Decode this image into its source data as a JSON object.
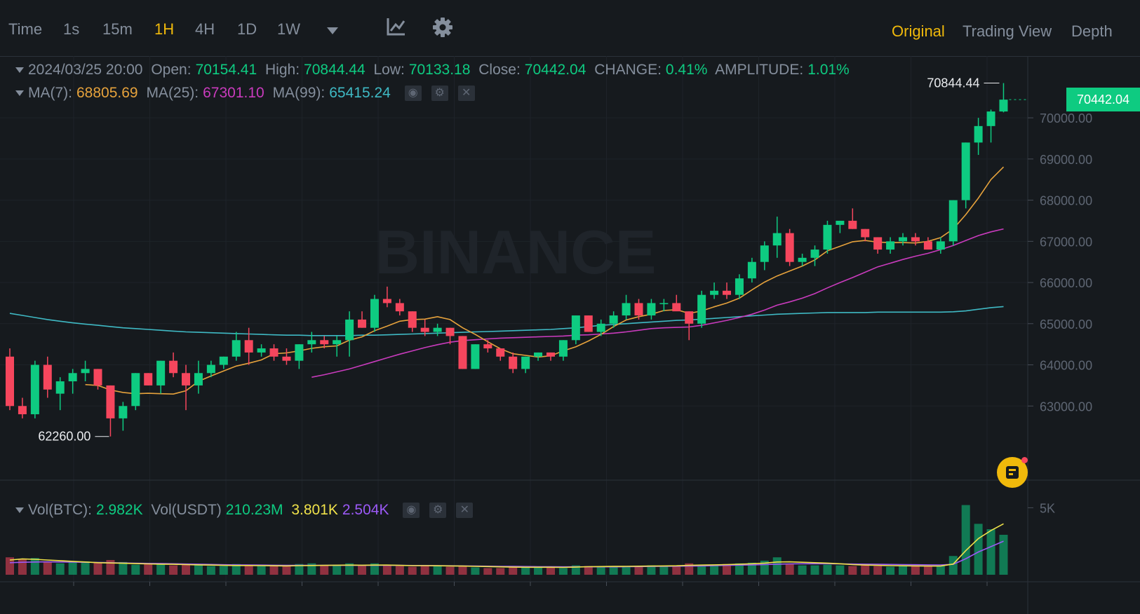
{
  "toolbar": {
    "timeframes": [
      "Time",
      "1s",
      "15m",
      "1H",
      "4H",
      "1D",
      "1W"
    ],
    "active_timeframe": "1H",
    "views": [
      "Original",
      "Trading View",
      "Depth"
    ],
    "active_view": "Original"
  },
  "legend": {
    "date": "2024/03/25 20:00",
    "open_label": "Open:",
    "open": "70154.41",
    "high_label": "High:",
    "high": "70844.44",
    "low_label": "Low:",
    "low": "70133.18",
    "close_label": "Close:",
    "close": "70442.04",
    "change_label": "CHANGE:",
    "change": "0.41%",
    "amplitude_label": "AMPLITUDE:",
    "amplitude": "1.01%",
    "ma7_label": "MA(7):",
    "ma7": "68805.69",
    "ma25_label": "MA(25):",
    "ma25": "67301.10",
    "ma99_label": "MA(99):",
    "ma99": "65415.24"
  },
  "vol_legend": {
    "btc_label": "Vol(BTC):",
    "btc": "2.982K",
    "usdt_label": "Vol(USDT)",
    "usdt": "210.23M",
    "ma5": "3.801K",
    "ma10": "2.504K"
  },
  "markers": {
    "high": "70844.44",
    "low": "62260.00"
  },
  "last_price": "70442.04",
  "watermark": "BINANCE",
  "colors": {
    "up": "#0ecb81",
    "down": "#f6465d",
    "ma7": "#e6a23c",
    "ma25": "#c93bbd",
    "ma99": "#3fb9c4",
    "accent": "#f0b90b"
  },
  "chart_data": {
    "type": "candlestick",
    "y_ticks": [
      "70000.00",
      "69000.00",
      "68000.00",
      "67000.00",
      "66000.00",
      "65000.00",
      "64000.00",
      "63000.00"
    ],
    "y_tick_values": [
      70000,
      69000,
      68000,
      67000,
      66000,
      65000,
      64000,
      63000
    ],
    "ylim": [
      61200,
      71500
    ],
    "vol_ticks": [
      "5K"
    ],
    "vol_tick_values": [
      5000
    ],
    "vol_ylim": [
      0,
      6800
    ],
    "candles": [
      [
        64200,
        64400,
        62900,
        63000
      ],
      [
        63000,
        63200,
        62700,
        62800
      ],
      [
        62800,
        64100,
        62700,
        64000
      ],
      [
        64000,
        64200,
        63200,
        63400
      ],
      [
        63300,
        63700,
        62900,
        63600
      ],
      [
        63600,
        63900,
        63300,
        63800
      ],
      [
        63800,
        64100,
        63600,
        63900
      ],
      [
        63900,
        63900,
        63400,
        63500
      ],
      [
        63500,
        63500,
        62260,
        62700
      ],
      [
        62700,
        63100,
        62400,
        63000
      ],
      [
        63000,
        63800,
        62900,
        63800
      ],
      [
        63800,
        63800,
        63500,
        63500
      ],
      [
        63500,
        64100,
        63300,
        64100
      ],
      [
        64100,
        64300,
        63700,
        63800
      ],
      [
        63800,
        64000,
        62900,
        63500
      ],
      [
        63500,
        64100,
        63300,
        63800
      ],
      [
        63800,
        64100,
        63700,
        64000
      ],
      [
        64000,
        64200,
        63900,
        64200
      ],
      [
        64200,
        64800,
        64100,
        64600
      ],
      [
        64600,
        64900,
        64000,
        64300
      ],
      [
        64300,
        64500,
        64200,
        64400
      ],
      [
        64400,
        64500,
        64100,
        64200
      ],
      [
        64200,
        64400,
        64000,
        64100
      ],
      [
        64100,
        64500,
        63900,
        64500
      ],
      [
        64500,
        64800,
        64300,
        64600
      ],
      [
        64600,
        64700,
        64400,
        64500
      ],
      [
        64500,
        64700,
        64200,
        64600
      ],
      [
        64600,
        65300,
        64200,
        65100
      ],
      [
        65100,
        65300,
        64900,
        64900
      ],
      [
        64900,
        65700,
        64800,
        65600
      ],
      [
        65600,
        65900,
        65400,
        65500
      ],
      [
        65500,
        65600,
        65200,
        65300
      ],
      [
        65300,
        65300,
        64800,
        64900
      ],
      [
        64900,
        65100,
        64700,
        64800
      ],
      [
        64800,
        65000,
        64700,
        64900
      ],
      [
        64900,
        64900,
        64500,
        64700
      ],
      [
        64700,
        64700,
        63900,
        63900
      ],
      [
        63900,
        64500,
        63900,
        64500
      ],
      [
        64500,
        64600,
        64300,
        64400
      ],
      [
        64400,
        64400,
        64100,
        64200
      ],
      [
        64200,
        64300,
        63800,
        63900
      ],
      [
        63900,
        64200,
        63800,
        64200
      ],
      [
        64200,
        64300,
        64100,
        64300
      ],
      [
        64300,
        64300,
        64100,
        64200
      ],
      [
        64200,
        64600,
        64100,
        64600
      ],
      [
        64600,
        65200,
        64500,
        65200
      ],
      [
        65200,
        65200,
        64800,
        64800
      ],
      [
        64800,
        65100,
        64700,
        65000
      ],
      [
        65000,
        65300,
        64900,
        65200
      ],
      [
        65200,
        65700,
        65100,
        65500
      ],
      [
        65500,
        65600,
        65100,
        65200
      ],
      [
        65200,
        65600,
        65100,
        65500
      ],
      [
        65500,
        65600,
        65300,
        65500
      ],
      [
        65500,
        65700,
        65400,
        65300
      ],
      [
        65300,
        65300,
        64600,
        65000
      ],
      [
        65000,
        65800,
        64900,
        65700
      ],
      [
        65700,
        66000,
        65600,
        65800
      ],
      [
        65800,
        66000,
        65600,
        65700
      ],
      [
        65700,
        66200,
        65600,
        66100
      ],
      [
        66100,
        66600,
        66000,
        66500
      ],
      [
        66500,
        67000,
        66300,
        66900
      ],
      [
        66900,
        67600,
        66600,
        67200
      ],
      [
        67200,
        67300,
        66400,
        66500
      ],
      [
        66500,
        66700,
        66400,
        66600
      ],
      [
        66600,
        66900,
        66400,
        66800
      ],
      [
        66800,
        67500,
        66700,
        67400
      ],
      [
        67400,
        67500,
        67200,
        67500
      ],
      [
        67500,
        67800,
        67300,
        67300
      ],
      [
        67300,
        67300,
        67000,
        67100
      ],
      [
        67100,
        67100,
        66700,
        66800
      ],
      [
        66800,
        67100,
        66700,
        67000
      ],
      [
        67000,
        67200,
        66900,
        67100
      ],
      [
        67100,
        67200,
        66900,
        67000
      ],
      [
        67000,
        67100,
        66800,
        66800
      ],
      [
        66800,
        67100,
        66700,
        67000
      ],
      [
        67000,
        68000,
        66900,
        68000
      ],
      [
        68000,
        69400,
        67800,
        69400
      ],
      [
        69400,
        70000,
        69100,
        69800
      ],
      [
        69800,
        70200,
        69400,
        70154
      ],
      [
        70154,
        70844,
        70133,
        70442
      ]
    ],
    "volumes": [
      1300,
      1200,
      1250,
      950,
      850,
      950,
      1000,
      900,
      1100,
      950,
      750,
      850,
      850,
      700,
      800,
      750,
      650,
      650,
      800,
      750,
      650,
      650,
      650,
      800,
      850,
      700,
      750,
      850,
      700,
      850,
      750,
      650,
      600,
      650,
      700,
      600,
      650,
      550,
      500,
      500,
      550,
      550,
      550,
      550,
      500,
      700,
      650,
      550,
      600,
      650,
      650,
      700,
      650,
      700,
      850,
      750,
      750,
      800,
      850,
      900,
      1050,
      1300,
      800,
      700,
      700,
      750,
      700,
      650,
      700,
      650,
      600,
      650,
      650,
      650,
      650,
      1400,
      5200,
      3800,
      3400,
      2982
    ],
    "vol_ma5": [
      1100,
      1180,
      1150,
      1100,
      1050,
      1000,
      950,
      900,
      880,
      860,
      830,
      810,
      790,
      780,
      760,
      740,
      720,
      700,
      690,
      690,
      680,
      670,
      660,
      680,
      690,
      700,
      710,
      720,
      710,
      720,
      720,
      700,
      680,
      680,
      670,
      660,
      650,
      630,
      610,
      590,
      570,
      560,
      560,
      560,
      550,
      570,
      600,
      610,
      620,
      630,
      640,
      650,
      660,
      670,
      700,
      720,
      740,
      760,
      790,
      820,
      870,
      950,
      960,
      930,
      900,
      870,
      820,
      760,
      720,
      700,
      680,
      670,
      660,
      650,
      650,
      800,
      1800,
      2700,
      3300,
      3801
    ],
    "vol_ma10": [
      900,
      930,
      950,
      960,
      950,
      940,
      930,
      920,
      900,
      880,
      860,
      850,
      840,
      820,
      800,
      790,
      770,
      750,
      740,
      730,
      720,
      710,
      700,
      700,
      700,
      700,
      700,
      700,
      700,
      700,
      700,
      700,
      690,
      690,
      680,
      670,
      660,
      650,
      640,
      630,
      620,
      610,
      600,
      600,
      590,
      590,
      590,
      590,
      590,
      600,
      610,
      620,
      630,
      640,
      650,
      660,
      680,
      700,
      720,
      740,
      760,
      790,
      810,
      820,
      820,
      820,
      810,
      800,
      790,
      780,
      770,
      760,
      750,
      740,
      730,
      780,
      1200,
      1700,
      2100,
      2504
    ],
    "ma7": [
      null,
      null,
      null,
      null,
      null,
      null,
      63520,
      63500,
      63390,
      63330,
      63300,
      63310,
      63300,
      63290,
      63370,
      63600,
      63730,
      63850,
      63970,
      64040,
      64120,
      64270,
      64290,
      64340,
      64400,
      64440,
      64460,
      64600,
      64680,
      64830,
      64940,
      65060,
      65100,
      65110,
      65170,
      65100,
      64900,
      64740,
      64560,
      64390,
      64270,
      64230,
      64190,
      64220,
      64340,
      64440,
      64580,
      64740,
      64930,
      65090,
      65170,
      65230,
      65320,
      65340,
      65250,
      65310,
      65410,
      65500,
      65620,
      65820,
      66010,
      66160,
      66280,
      66400,
      66550,
      66770,
      66880,
      66990,
      67020,
      66980,
      66970,
      66970,
      66960,
      67000,
      67090,
      67300,
      67650,
      68050,
      68500,
      68806
    ],
    "ma25": [
      null,
      null,
      null,
      null,
      null,
      null,
      null,
      null,
      null,
      null,
      null,
      null,
      null,
      null,
      null,
      null,
      null,
      null,
      null,
      null,
      null,
      null,
      null,
      null,
      63700,
      63760,
      63830,
      63900,
      63990,
      64080,
      64170,
      64260,
      64340,
      64420,
      64490,
      64550,
      64590,
      64610,
      64630,
      64650,
      64660,
      64670,
      64680,
      64690,
      64700,
      64720,
      64730,
      64750,
      64770,
      64800,
      64840,
      64880,
      64900,
      64910,
      64920,
      64960,
      65020,
      65080,
      65150,
      65230,
      65330,
      65450,
      65530,
      65620,
      65730,
      65870,
      66000,
      66120,
      66250,
      66380,
      66470,
      66560,
      66640,
      66710,
      66800,
      66900,
      67020,
      67140,
      67230,
      67301
    ],
    "ma99": [
      65250,
      65200,
      65150,
      65100,
      65060,
      65020,
      64990,
      64960,
      64930,
      64900,
      64880,
      64860,
      64840,
      64820,
      64800,
      64790,
      64780,
      64770,
      64760,
      64750,
      64740,
      64730,
      64720,
      64720,
      64710,
      64710,
      64710,
      64710,
      64720,
      64720,
      64730,
      64740,
      64750,
      64760,
      64770,
      64780,
      64790,
      64800,
      64810,
      64820,
      64830,
      64840,
      64850,
      64860,
      64880,
      64900,
      64930,
      64960,
      64980,
      65000,
      65020,
      65040,
      65060,
      65080,
      65090,
      65110,
      65130,
      65150,
      65170,
      65190,
      65210,
      65230,
      65240,
      65250,
      65260,
      65270,
      65270,
      65270,
      65270,
      65280,
      65280,
      65280,
      65280,
      65280,
      65280,
      65290,
      65310,
      65350,
      65390,
      65415
    ]
  }
}
